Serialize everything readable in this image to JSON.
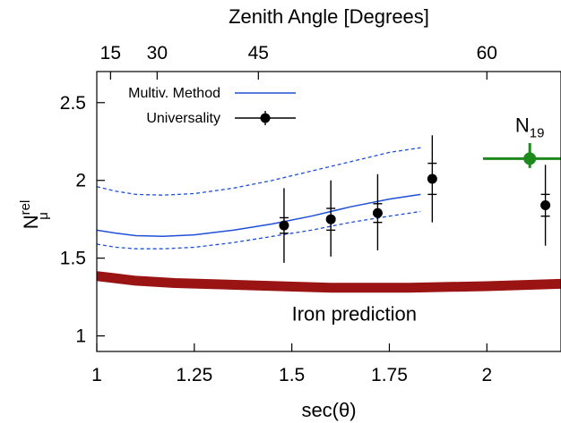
{
  "chart_data": {
    "type": "line",
    "xlabel": "sec(θ)",
    "ylabel_main": "N",
    "ylabel_sub": "μ",
    "ylabel_sup": "rel",
    "top_axis_label": "Zenith Angle [Degrees]",
    "xlim": [
      1.0,
      2.19
    ],
    "ylim": [
      0.9,
      2.7
    ],
    "x_ticks": [
      1,
      1.25,
      1.5,
      1.75,
      2
    ],
    "x_tick_labels": [
      "1",
      "1.25",
      "1.5",
      "1.75",
      "2"
    ],
    "y_ticks": [
      1,
      1.5,
      2,
      2.5
    ],
    "y_tick_labels": [
      "1",
      "1.5",
      "2",
      "2.5"
    ],
    "top_ticks": [
      {
        "label": "15",
        "x": 1.0353
      },
      {
        "label": "30",
        "x": 1.1547
      },
      {
        "label": "45",
        "x": 1.4142
      },
      {
        "label": "60",
        "x": 2.0
      }
    ],
    "grid": false,
    "legend_position": "top-left",
    "legend": [
      {
        "label": "Multiv. Method",
        "series": "multiv"
      },
      {
        "label": "Universality",
        "series": "universality"
      }
    ],
    "series": [
      {
        "name": "Multiv. Method",
        "color": "#1f4fd6",
        "x": [
          1.0,
          1.05,
          1.1,
          1.17,
          1.25,
          1.35,
          1.45,
          1.55,
          1.65,
          1.75,
          1.83
        ],
        "y": [
          1.68,
          1.66,
          1.645,
          1.64,
          1.65,
          1.68,
          1.72,
          1.77,
          1.83,
          1.88,
          1.91
        ]
      },
      {
        "name": "Multiv. Method band upper",
        "color": "#1f4fd6",
        "x": [
          1.0,
          1.05,
          1.1,
          1.17,
          1.25,
          1.35,
          1.45,
          1.55,
          1.65,
          1.75,
          1.83
        ],
        "y": [
          1.96,
          1.93,
          1.91,
          1.905,
          1.915,
          1.95,
          2.0,
          2.06,
          2.12,
          2.18,
          2.21
        ]
      },
      {
        "name": "Multiv. Method band lower",
        "color": "#1f4fd6",
        "x": [
          1.0,
          1.05,
          1.1,
          1.17,
          1.25,
          1.35,
          1.45,
          1.55,
          1.65,
          1.75,
          1.83
        ],
        "y": [
          1.59,
          1.57,
          1.56,
          1.56,
          1.57,
          1.6,
          1.64,
          1.68,
          1.73,
          1.77,
          1.8
        ]
      },
      {
        "name": "Iron prediction",
        "color": "#9b1414",
        "x": [
          1.0,
          1.1,
          1.2,
          1.4,
          1.6,
          1.8,
          2.0,
          2.19
        ],
        "y": [
          1.385,
          1.355,
          1.34,
          1.325,
          1.31,
          1.31,
          1.32,
          1.335
        ]
      }
    ],
    "points": [
      {
        "name": "Universality",
        "color": "#000000",
        "x": 1.48,
        "y": 1.71,
        "sys": 0.05,
        "stat_lo": 0.24,
        "stat_hi": 0.24
      },
      {
        "name": "Universality",
        "color": "#000000",
        "x": 1.6,
        "y": 1.75,
        "sys": 0.07,
        "stat_lo": 0.24,
        "stat_hi": 0.25
      },
      {
        "name": "Universality",
        "color": "#000000",
        "x": 1.72,
        "y": 1.79,
        "sys": 0.06,
        "stat_lo": 0.24,
        "stat_hi": 0.25
      },
      {
        "name": "Universality",
        "color": "#000000",
        "x": 1.86,
        "y": 2.01,
        "sys": 0.1,
        "stat_lo": 0.28,
        "stat_hi": 0.28
      },
      {
        "name": "Universality",
        "color": "#000000",
        "x": 2.15,
        "y": 1.84,
        "sys": 0.07,
        "stat_lo": 0.26,
        "stat_hi": 0.26
      }
    ],
    "n19": {
      "label": "N",
      "label_sub": "19",
      "color": "#1e8a1e",
      "x": 2.11,
      "y": 2.14,
      "x_lo": 1.99,
      "x_hi": 2.19,
      "y_err_lo": 0.06,
      "y_err_hi": 0.1
    },
    "annotations": [
      {
        "text": "Iron prediction",
        "x": 1.66,
        "y": 1.14
      }
    ]
  }
}
